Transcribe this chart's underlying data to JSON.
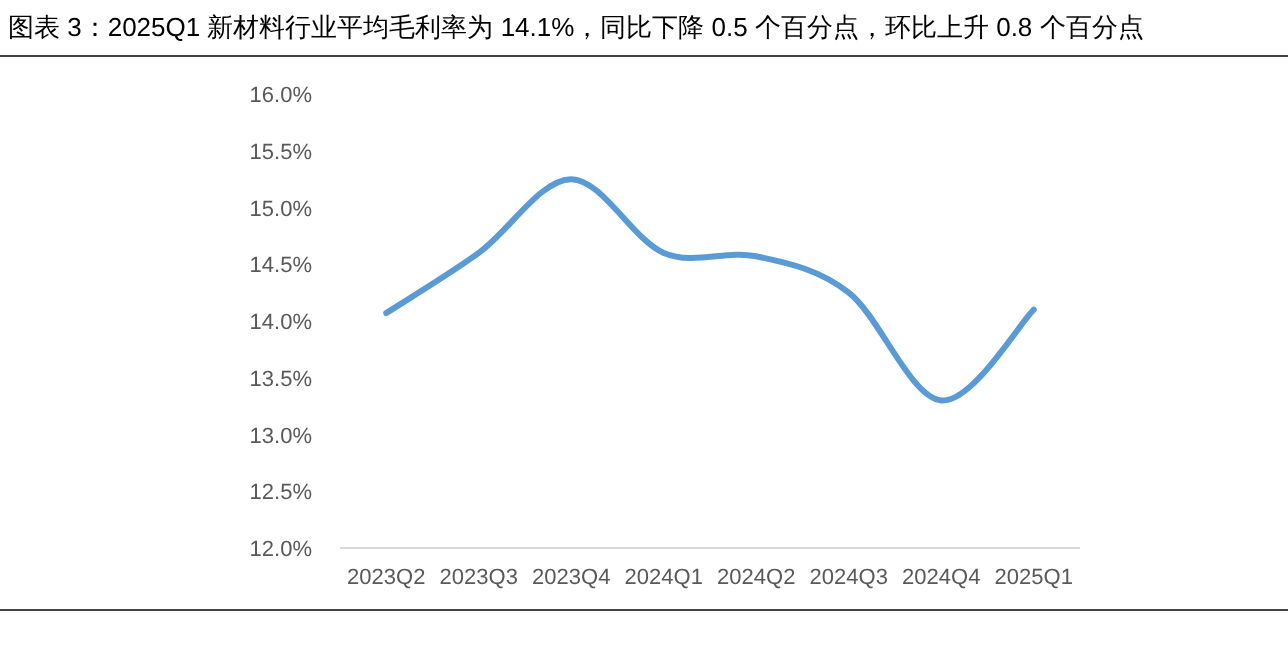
{
  "chart_data": {
    "type": "line",
    "title": "图表 3：2025Q1 新材料行业平均毛利率为 14.1%，同比下降 0.5 个百分点，环比上升 0.8 个百分点",
    "categories": [
      "2023Q2",
      "2023Q3",
      "2023Q4",
      "2024Q1",
      "2024Q2",
      "2024Q3",
      "2024Q4",
      "2025Q1"
    ],
    "series": [
      {
        "color": "#5b9bd5",
        "values": [
          14.07,
          14.6,
          15.25,
          14.6,
          14.57,
          14.25,
          13.3,
          14.1
        ]
      }
    ],
    "ylim": [
      12,
      16
    ],
    "yticks": [
      {
        "value": 12,
        "label": "12.0%"
      },
      {
        "value": 12.5,
        "label": "12.5%"
      },
      {
        "value": 13,
        "label": "13.0%"
      },
      {
        "value": 13.5,
        "label": "13.5%"
      },
      {
        "value": 14,
        "label": "14.0%"
      },
      {
        "value": 14.5,
        "label": "14.5%"
      },
      {
        "value": 15,
        "label": "15.0%"
      },
      {
        "value": 15.5,
        "label": "15.5%"
      },
      {
        "value": 16,
        "label": "16.0%"
      }
    ],
    "grid": false
  }
}
